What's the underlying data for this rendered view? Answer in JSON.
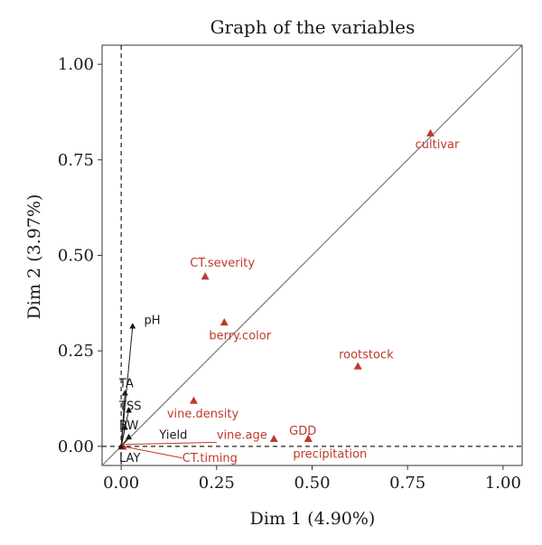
{
  "chart_data": {
    "type": "scatter",
    "title": "Graph of the variables",
    "xlabel": "Dim 1 (4.90%)",
    "ylabel": "Dim 2 (3.97%)",
    "xlim": [
      -0.05,
      1.05
    ],
    "ylim": [
      -0.05,
      1.05
    ],
    "x_ticks": [
      "0.00",
      "0.25",
      "0.50",
      "0.75",
      "1.00"
    ],
    "y_ticks": [
      "0.00",
      "0.25",
      "0.50",
      "0.75",
      "1.00"
    ],
    "reference_lines": {
      "diagonal": true,
      "x_zero_dashed": true,
      "y_zero_dashed": true
    },
    "grid": false,
    "colors": {
      "active": "#c0392b",
      "supplementary": "#1a1a1a",
      "diagonal": "#777777"
    },
    "points": [
      {
        "label": "cultivar",
        "x": 0.81,
        "y": 0.82,
        "group": "active",
        "lx": 0.77,
        "ly": 0.78
      },
      {
        "label": "CT.severity",
        "x": 0.22,
        "y": 0.445,
        "group": "active",
        "lx": 0.18,
        "ly": 0.47
      },
      {
        "label": "berry.color",
        "x": 0.27,
        "y": 0.325,
        "group": "active",
        "lx": 0.23,
        "ly": 0.28
      },
      {
        "label": "rootstock",
        "x": 0.62,
        "y": 0.21,
        "group": "active",
        "lx": 0.57,
        "ly": 0.23
      },
      {
        "label": "vine.density",
        "x": 0.19,
        "y": 0.12,
        "group": "active",
        "lx": 0.12,
        "ly": 0.075
      },
      {
        "label": "vine.age",
        "x": 0.4,
        "y": 0.02,
        "group": "active",
        "lx": 0.25,
        "ly": 0.02
      },
      {
        "label": "GDD",
        "x": 0.49,
        "y": 0.02,
        "group": "active",
        "lx": 0.44,
        "ly": 0.03
      },
      {
        "label": "precipitation",
        "x": 0.49,
        "y": 0.02,
        "group": "active",
        "lx": 0.45,
        "ly": -0.03
      },
      {
        "label": "CT.timing",
        "x": 0.005,
        "y": 0.0,
        "group": "active",
        "lx": 0.16,
        "ly": -0.04
      },
      {
        "label": "pH",
        "x": 0.03,
        "y": 0.315,
        "group": "supplementary",
        "lx": 0.06,
        "ly": 0.32
      },
      {
        "label": "TA",
        "x": 0.01,
        "y": 0.14,
        "group": "supplementary",
        "lx": -0.005,
        "ly": 0.155
      },
      {
        "label": "TSS",
        "x": 0.02,
        "y": 0.095,
        "group": "supplementary",
        "lx": -0.005,
        "ly": 0.095
      },
      {
        "label": "BW",
        "x": 0.01,
        "y": 0.05,
        "group": "supplementary",
        "lx": -0.005,
        "ly": 0.045
      },
      {
        "label": "Yield",
        "x": 0.02,
        "y": 0.025,
        "group": "supplementary",
        "lx": 0.1,
        "ly": 0.02
      },
      {
        "label": "LAY",
        "x": 0.0,
        "y": 0.0,
        "group": "supplementary",
        "lx": -0.005,
        "ly": -0.04
      }
    ]
  }
}
